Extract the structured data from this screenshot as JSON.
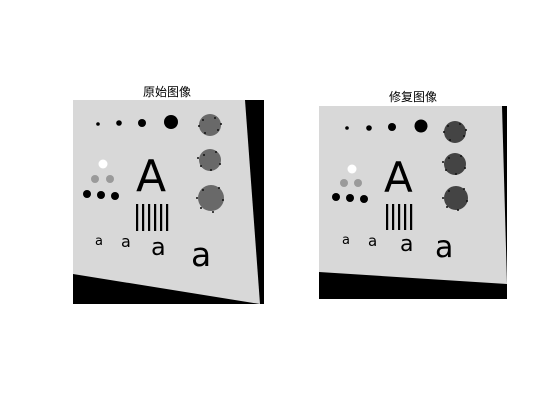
{
  "panels": [
    {
      "title": "原始图像",
      "letters": [
        "A",
        "a",
        "a",
        "a",
        "a"
      ]
    },
    {
      "title": "修复图像",
      "letters": [
        "A",
        "a",
        "a",
        "a",
        "a"
      ]
    }
  ],
  "colors": {
    "background": "#ffffff",
    "image_black": "#000000",
    "image_gray": "#d8d8d8",
    "mid_gray": "#9a9a9a",
    "white_dot": "#ffffff"
  }
}
